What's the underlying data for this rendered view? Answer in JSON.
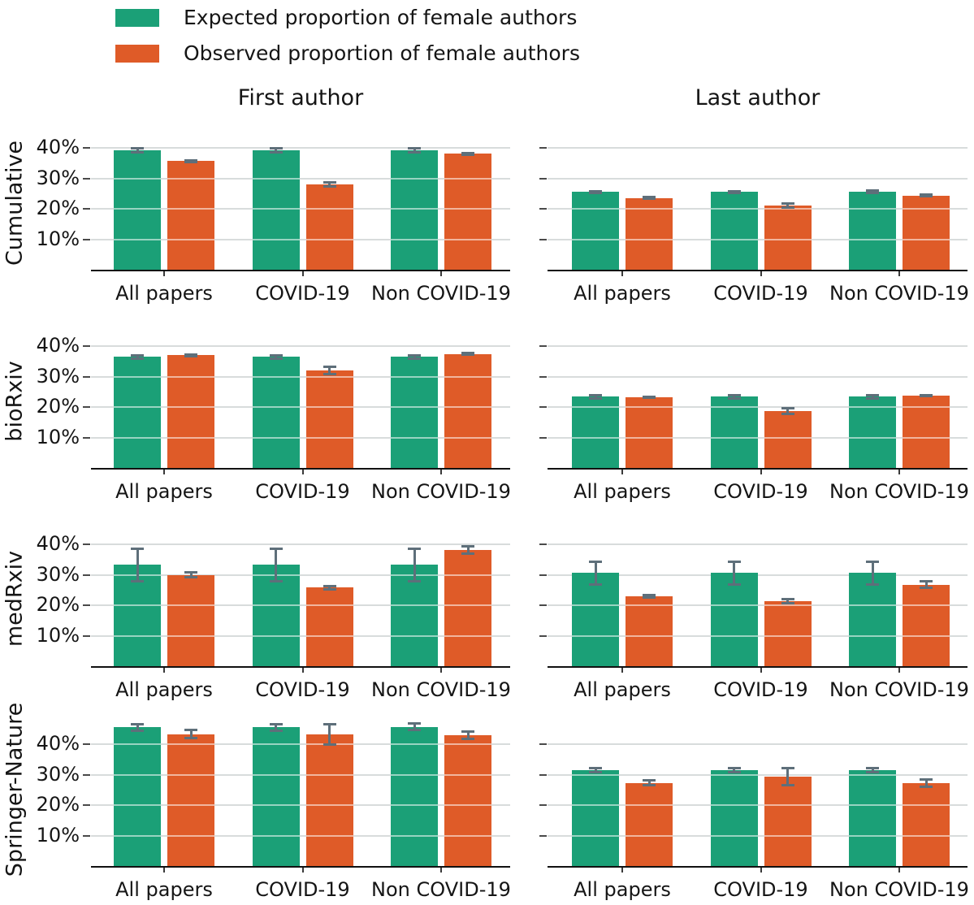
{
  "legend": {
    "items": [
      {
        "label": "Expected proportion of female authors",
        "color": "#1BA077"
      },
      {
        "label": "Observed proportion of female authors",
        "color": "#DF5B28"
      }
    ]
  },
  "columns": [
    "First author",
    "Last author"
  ],
  "rows": [
    "Cumulative",
    "bioRxiv",
    "medRxiv",
    "Springer-Nature"
  ],
  "y_tick_labels": [
    "40%",
    "30%",
    "20%",
    "10%"
  ],
  "chart_data": {
    "type": "bar",
    "unit": "percent",
    "categories": [
      "All papers",
      "COVID-19",
      "Non COVID-19"
    ],
    "y_tick_values": [
      10,
      20,
      30,
      40
    ],
    "grid": true,
    "error_bars": true,
    "error_bar_color": "#5E6F7A",
    "series_colors": {
      "expected": "#1BA077",
      "observed": "#DF5B28"
    },
    "legend_position": "top-left",
    "panels": [
      {
        "row": "Cumulative",
        "col": "First author",
        "ylim": [
          0,
          44
        ],
        "expected": {
          "values": [
            39.2,
            39.2,
            39.2
          ],
          "errors": [
            0.7,
            0.7,
            0.7
          ]
        },
        "observed": {
          "values": [
            35.7,
            28.0,
            38.1
          ],
          "errors": [
            0.4,
            0.9,
            0.4
          ]
        }
      },
      {
        "row": "Cumulative",
        "col": "Last author",
        "ylim": [
          0,
          44
        ],
        "expected": {
          "values": [
            25.5,
            25.5,
            25.6
          ],
          "errors": [
            0.5,
            0.5,
            0.5
          ]
        },
        "observed": {
          "values": [
            23.6,
            21.0,
            24.4
          ],
          "errors": [
            0.3,
            0.8,
            0.3
          ]
        }
      },
      {
        "row": "bioRxiv",
        "col": "First author",
        "ylim": [
          0,
          44
        ],
        "expected": {
          "values": [
            36.5,
            36.5,
            36.5
          ],
          "errors": [
            0.7,
            0.7,
            0.7
          ]
        },
        "observed": {
          "values": [
            37.0,
            32.0,
            37.4
          ],
          "errors": [
            0.4,
            1.3,
            0.4
          ]
        }
      },
      {
        "row": "bioRxiv",
        "col": "Last author",
        "ylim": [
          0,
          44
        ],
        "expected": {
          "values": [
            23.4,
            23.4,
            23.4
          ],
          "errors": [
            0.6,
            0.6,
            0.6
          ]
        },
        "observed": {
          "values": [
            23.3,
            18.6,
            23.8
          ],
          "errors": [
            0.3,
            1.1,
            0.3
          ]
        }
      },
      {
        "row": "medRxiv",
        "col": "First author",
        "ylim": [
          0,
          44
        ],
        "expected": {
          "values": [
            33.3,
            33.3,
            33.3
          ],
          "errors": [
            5.5,
            5.5,
            5.5
          ]
        },
        "observed": {
          "values": [
            30.0,
            25.8,
            38.2
          ],
          "errors": [
            1.0,
            0.7,
            1.4
          ]
        }
      },
      {
        "row": "medRxiv",
        "col": "Last author",
        "ylim": [
          0,
          44
        ],
        "expected": {
          "values": [
            30.6,
            30.6,
            30.6
          ],
          "errors": [
            3.8,
            3.8,
            3.8
          ]
        },
        "observed": {
          "values": [
            23.0,
            21.3,
            26.7
          ],
          "errors": [
            0.5,
            0.8,
            1.2
          ]
        }
      },
      {
        "row": "Springer-Nature",
        "col": "First author",
        "ylim": [
          0,
          50
        ],
        "expected": {
          "values": [
            45.6,
            45.6,
            45.7
          ],
          "errors": [
            1.2,
            1.2,
            1.2
          ]
        },
        "observed": {
          "values": [
            43.3,
            43.3,
            42.9
          ],
          "errors": [
            1.5,
            3.5,
            1.4
          ]
        }
      },
      {
        "row": "Springer-Nature",
        "col": "Last author",
        "ylim": [
          0,
          50
        ],
        "expected": {
          "values": [
            31.5,
            31.5,
            31.5
          ],
          "errors": [
            0.8,
            0.8,
            0.8
          ]
        },
        "observed": {
          "values": [
            27.3,
            29.3,
            27.3
          ],
          "errors": [
            1.0,
            3.0,
            1.3
          ]
        }
      }
    ]
  }
}
